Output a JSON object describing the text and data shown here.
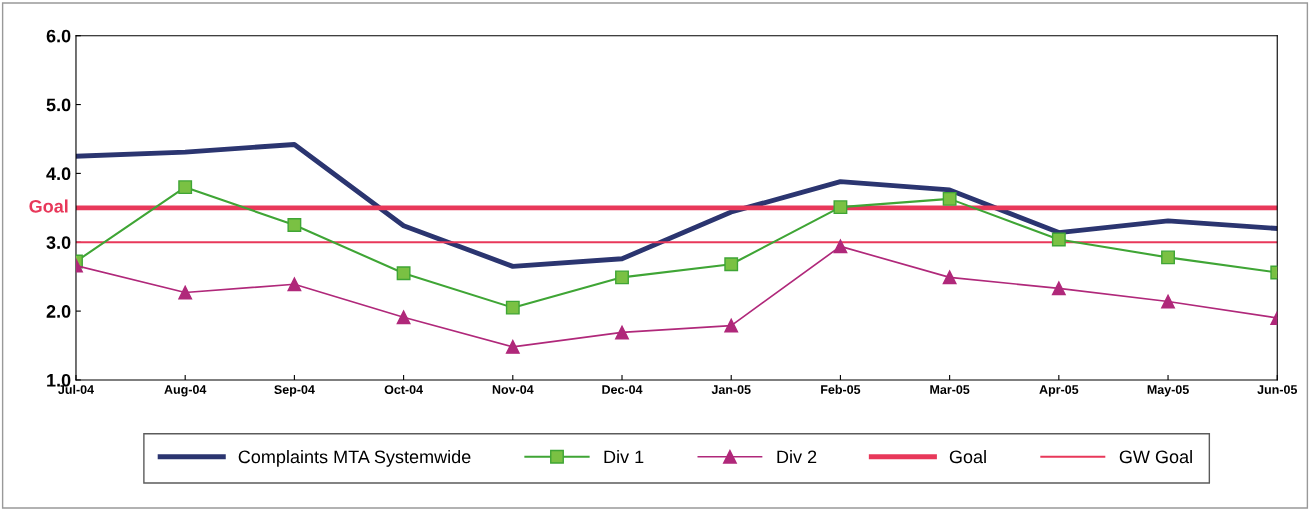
{
  "chart_data": {
    "type": "line",
    "categories": [
      "Jul-04",
      "Aug-04",
      "Sep-04",
      "Oct-04",
      "Nov-04",
      "Dec-04",
      "Jan-05",
      "Feb-05",
      "Mar-05",
      "Apr-05",
      "May-05",
      "Jun-05"
    ],
    "series": [
      {
        "name": "Complaints MTA Systemwide",
        "color": "#2b3570",
        "marker": "none",
        "values": [
          4.25,
          4.31,
          4.42,
          3.24,
          2.65,
          2.76,
          3.44,
          3.88,
          3.76,
          3.14,
          3.31,
          3.2
        ]
      },
      {
        "name": "Div 1",
        "color": "#3fa535",
        "marker": "square",
        "values": [
          2.72,
          3.8,
          3.25,
          2.55,
          2.05,
          2.49,
          2.68,
          3.51,
          3.63,
          3.04,
          2.78,
          2.56
        ]
      },
      {
        "name": "Div 2",
        "color": "#b0287a",
        "marker": "triangle",
        "values": [
          2.66,
          2.27,
          2.39,
          1.91,
          1.48,
          1.69,
          1.79,
          2.94,
          2.49,
          2.33,
          2.14,
          1.9
        ]
      },
      {
        "name": "Goal",
        "color": "#e8385a",
        "marker": "none",
        "values": [
          3.5,
          3.5,
          3.5,
          3.5,
          3.5,
          3.5,
          3.5,
          3.5,
          3.5,
          3.5,
          3.5,
          3.5
        ]
      },
      {
        "name": "GW Goal",
        "color": "#e8385a",
        "marker": "none",
        "values": [
          3.0,
          3.0,
          3.0,
          3.0,
          3.0,
          3.0,
          3.0,
          3.0,
          3.0,
          3.0,
          3.0,
          3.0
        ]
      }
    ],
    "ylim": [
      1.0,
      6.0
    ],
    "yticks": [
      {
        "value": 1,
        "label": "1.0"
      },
      {
        "value": 2,
        "label": "2.0"
      },
      {
        "value": 3,
        "label": "3.0"
      },
      {
        "value": 4,
        "label": "4.0"
      },
      {
        "value": 5,
        "label": "5.0"
      },
      {
        "value": 6,
        "label": "6.0"
      }
    ],
    "annotations": [
      "Goal"
    ],
    "grid": false,
    "legend": "bottom",
    "line_style": "solid"
  }
}
